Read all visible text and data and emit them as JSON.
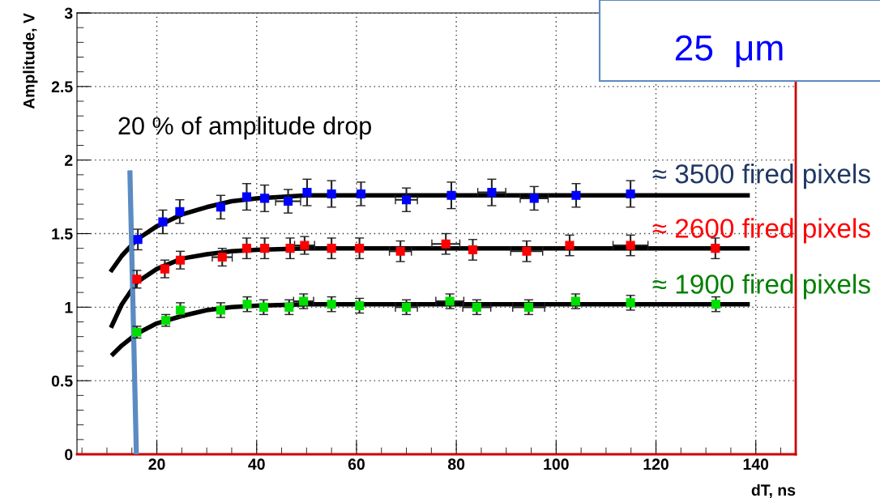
{
  "chart_data": {
    "type": "scatter",
    "xlabel": "dT, ns",
    "ylabel": "Amplitude, V",
    "annotations": [
      "25  μm",
      "20 % of amplitude drop"
    ],
    "xlim": [
      4,
      148
    ],
    "xticks": [
      20,
      40,
      60,
      80,
      100,
      120,
      140
    ],
    "ylim": [
      0,
      3
    ],
    "yticks": [
      0,
      0.5,
      1,
      1.5,
      2,
      2.5,
      3
    ],
    "grid": true,
    "legend": false,
    "series": [
      {
        "name": "≈ 3500 fired pixels",
        "marker": "square",
        "color": "#0000ff",
        "x": [
          16.2,
          21.2,
          24.6,
          32.8,
          38.0,
          41.6,
          46.3,
          50.1,
          55.0,
          60.9,
          70.0,
          79.0,
          87.1,
          95.6,
          104.0,
          114.9
        ],
        "values": [
          1.46,
          1.58,
          1.65,
          1.68,
          1.75,
          1.74,
          1.72,
          1.78,
          1.77,
          1.77,
          1.73,
          1.76,
          1.78,
          1.74,
          1.76,
          1.77
        ],
        "errors": [
          0.07,
          0.08,
          0.08,
          0.08,
          0.09,
          0.09,
          0.08,
          0.09,
          0.09,
          0.08,
          0.08,
          0.09,
          0.09,
          0.08,
          0.08,
          0.09
        ],
        "xerrors": [
          null,
          null,
          null,
          null,
          null,
          null,
          2.5,
          null,
          null,
          null,
          2.2,
          null,
          2.8,
          2.8,
          null,
          null
        ]
      },
      {
        "name": "≈ 2600 fired pixels",
        "marker": "square",
        "color": "#ff0000",
        "x": [
          16.0,
          21.6,
          24.7,
          33.1,
          38.0,
          41.6,
          46.7,
          49.6,
          55.0,
          60.6,
          68.8,
          77.9,
          83.3,
          94.1,
          102.7,
          114.9,
          131.9
        ],
        "values": [
          1.19,
          1.26,
          1.32,
          1.34,
          1.4,
          1.4,
          1.4,
          1.42,
          1.4,
          1.4,
          1.38,
          1.43,
          1.39,
          1.38,
          1.42,
          1.42,
          1.4
        ],
        "errors": [
          0.06,
          0.06,
          0.06,
          0.06,
          0.07,
          0.07,
          0.07,
          0.06,
          0.07,
          0.07,
          0.07,
          0.07,
          0.07,
          0.07,
          0.07,
          0.07,
          0.07
        ],
        "xerrors": [
          null,
          null,
          null,
          2.0,
          null,
          null,
          null,
          2.0,
          null,
          null,
          2.2,
          2.8,
          null,
          3.2,
          null,
          3.5,
          null
        ]
      },
      {
        "name": "≈ 1900 fired pixels",
        "marker": "square",
        "color": "#00e000",
        "x": [
          16.0,
          21.8,
          24.7,
          32.8,
          38.1,
          41.4,
          46.5,
          49.4,
          55.0,
          60.6,
          70.0,
          78.7,
          84.1,
          94.5,
          103.9,
          114.9,
          132.0
        ],
        "values": [
          0.83,
          0.91,
          0.98,
          0.98,
          1.02,
          1.0,
          1.0,
          1.04,
          1.02,
          1.01,
          1.0,
          1.04,
          1.0,
          1.0,
          1.04,
          1.03,
          1.02
        ],
        "errors": [
          0.04,
          0.04,
          0.05,
          0.05,
          0.05,
          0.05,
          0.05,
          0.05,
          0.05,
          0.05,
          0.05,
          0.05,
          0.05,
          0.05,
          0.05,
          0.05,
          0.05
        ],
        "xerrors": [
          null,
          null,
          null,
          null,
          null,
          null,
          null,
          2.0,
          null,
          null,
          2.2,
          2.8,
          2.8,
          3.2,
          null,
          null,
          null
        ]
      },
      {
        "type": "line",
        "marker": "none",
        "color": "#000000",
        "x": [
          10.7,
          13,
          16,
          20,
          25,
          30,
          35,
          40,
          50,
          138.8
        ],
        "values": [
          1.24,
          1.35,
          1.46,
          1.55,
          1.63,
          1.68,
          1.72,
          1.74,
          1.76,
          1.76
        ]
      },
      {
        "type": "line",
        "marker": "none",
        "color": "#000000",
        "x": [
          10.8,
          13,
          16,
          20,
          25,
          30,
          35,
          40,
          50,
          138.8
        ],
        "values": [
          0.86,
          1.02,
          1.17,
          1.26,
          1.33,
          1.36,
          1.38,
          1.39,
          1.4,
          1.4
        ]
      },
      {
        "type": "line",
        "marker": "none",
        "color": "#000000",
        "x": [
          10.9,
          13,
          16,
          20,
          25,
          30,
          35,
          40,
          50,
          138.8
        ],
        "values": [
          0.67,
          0.74,
          0.82,
          0.89,
          0.94,
          0.98,
          1.0,
          1.01,
          1.02,
          1.02
        ]
      },
      {
        "type": "line",
        "marker": "none",
        "color": "#5b8bc4",
        "x": [
          14.6,
          15.9
        ],
        "values": [
          1.93,
          0.0
        ]
      }
    ]
  }
}
